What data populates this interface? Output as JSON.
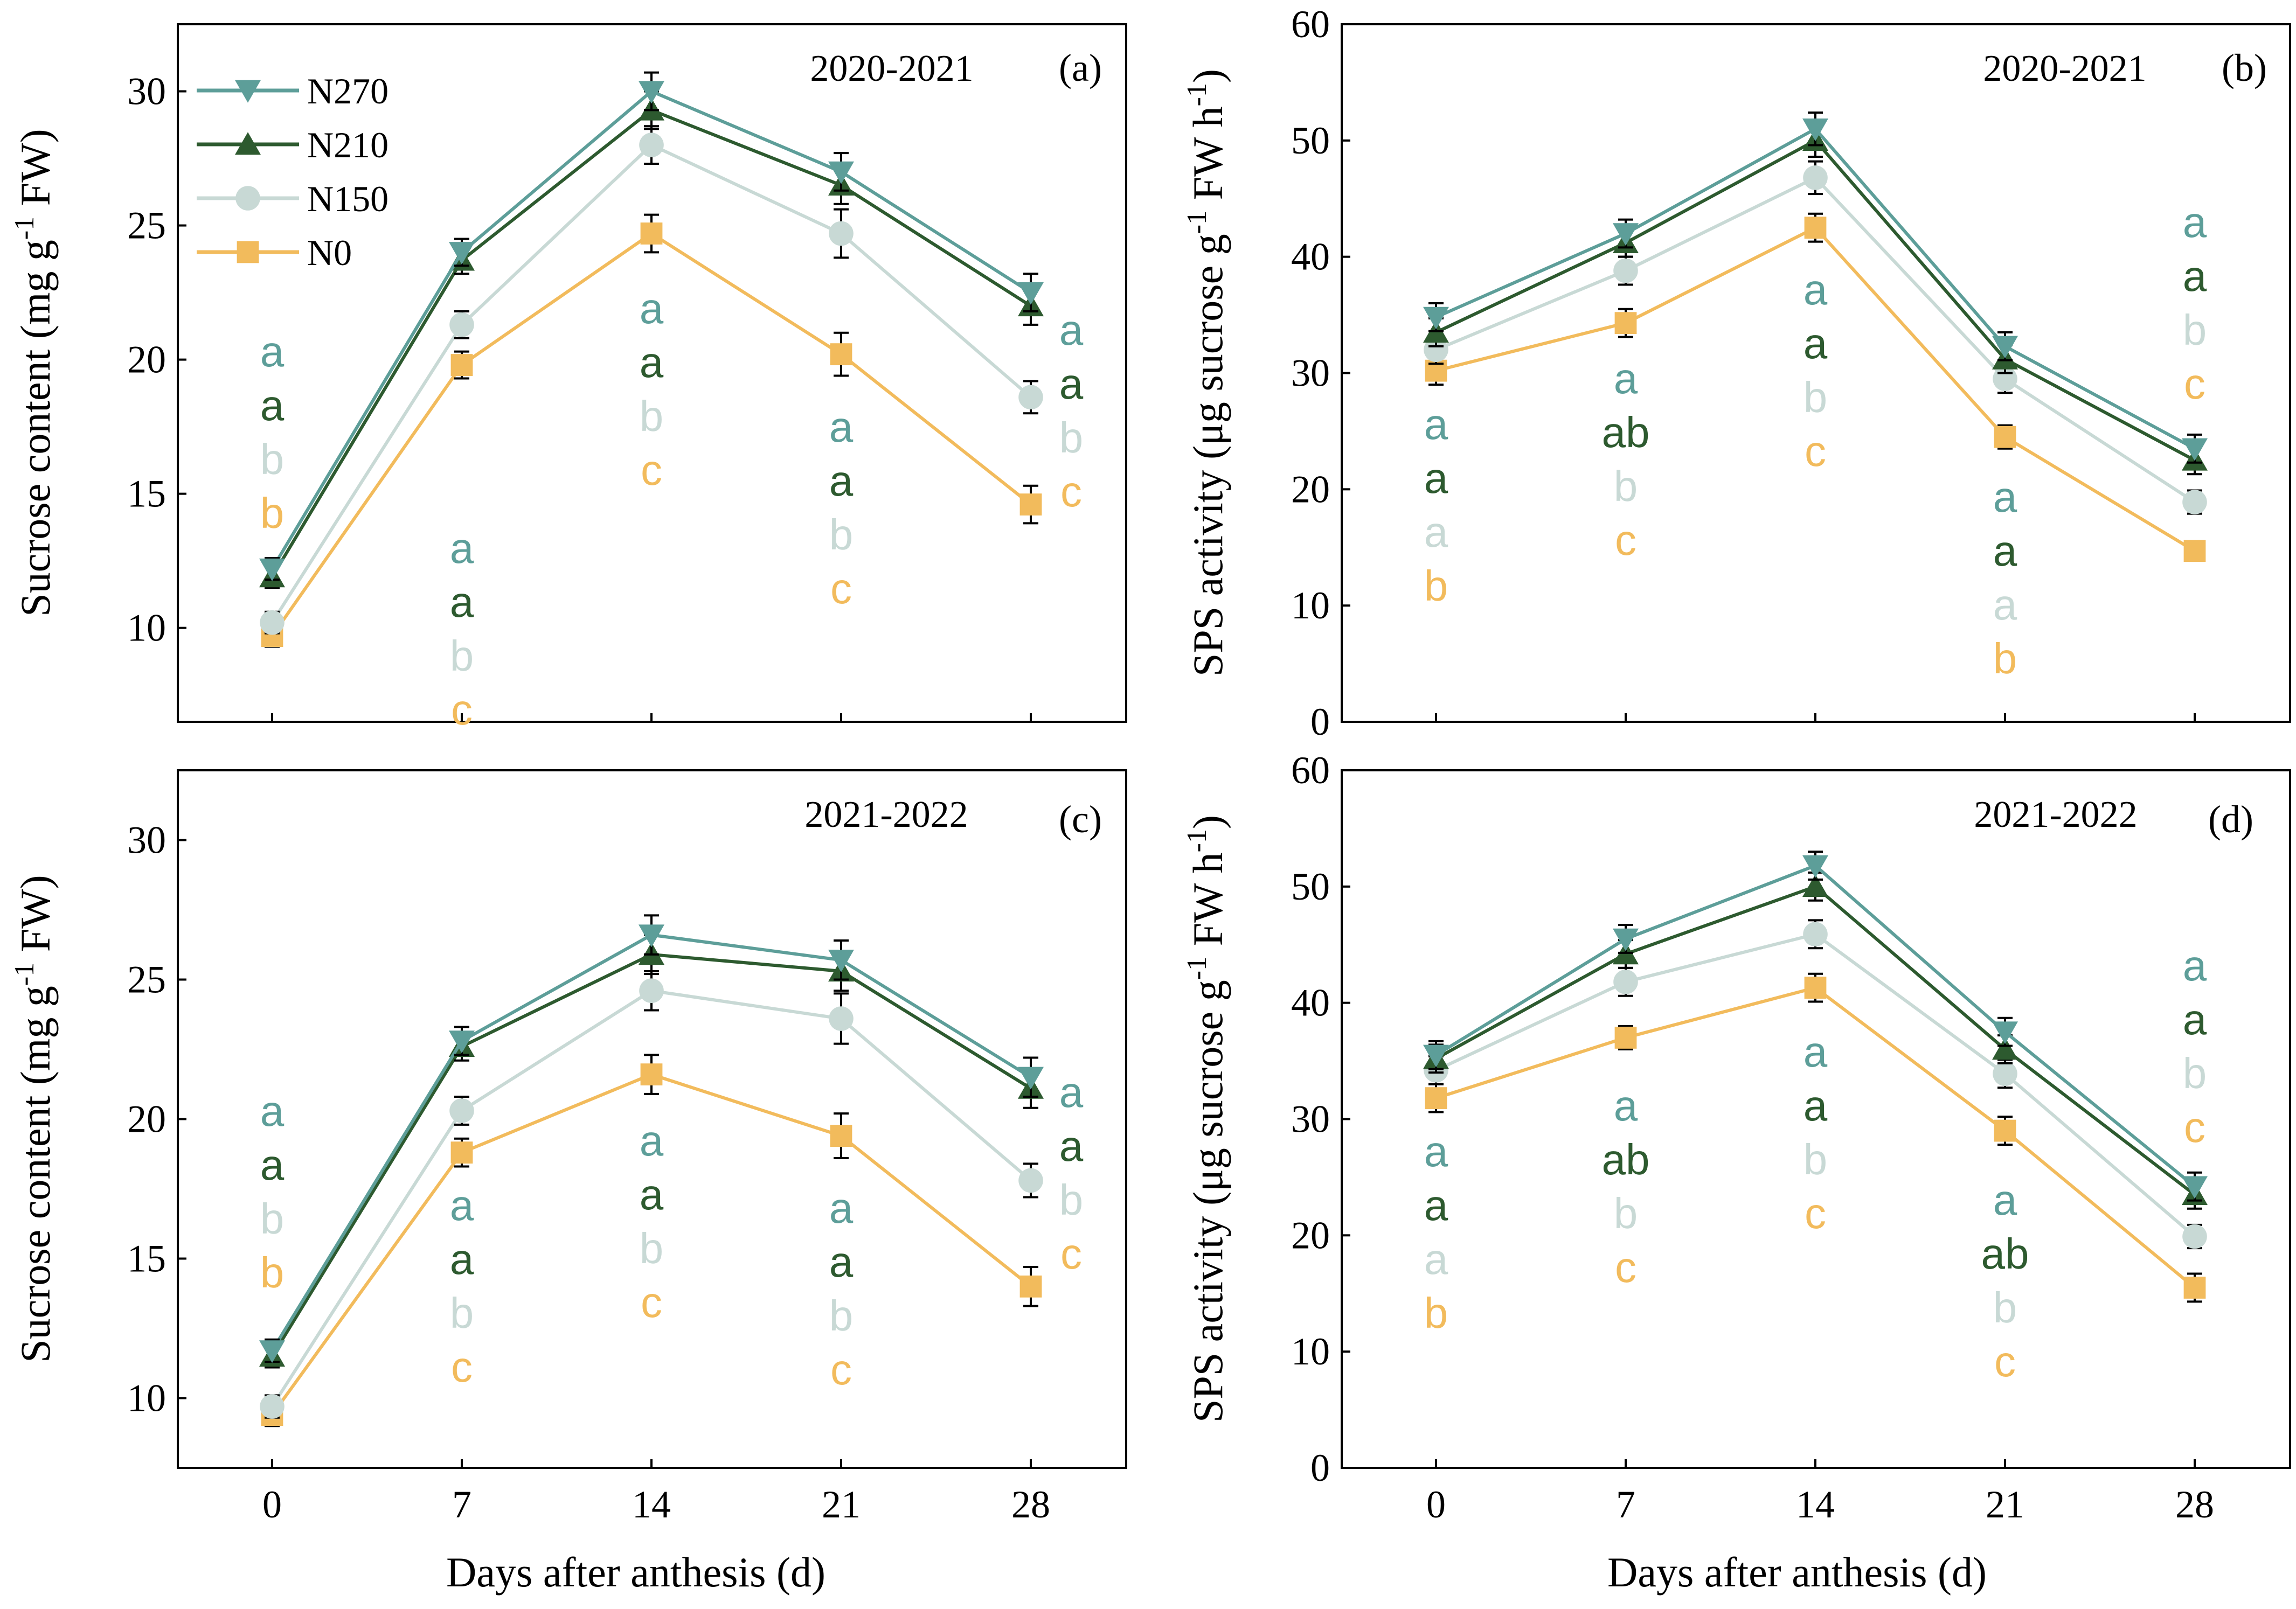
{
  "colors": {
    "N270": "#5d9e99",
    "N210": "#2d5a2f",
    "N150": "#c8d9d5",
    "N0": "#f2bb5c"
  },
  "legend": [
    {
      "name": "N270",
      "marker": "triangle-down"
    },
    {
      "name": "N210",
      "marker": "triangle-up"
    },
    {
      "name": "N150",
      "marker": "circle"
    },
    {
      "name": "N0",
      "marker": "square"
    }
  ],
  "x_axis_title": "Days after anthesis (d)",
  "chart_data": [
    {
      "type": "line",
      "panel": "(a)",
      "year": "2020-2021",
      "ylabel": "Sucrose content (mg g-1 FW)",
      "ylabel_parts": {
        "pre": "Sucrose content (mg g",
        "sup": "-1",
        "post": " FW)"
      },
      "x": [
        0,
        7,
        14,
        21,
        28
      ],
      "xticks": [
        "0",
        "7",
        "14",
        "21",
        "28"
      ],
      "ylim": [
        6.5,
        32.5
      ],
      "yticks": [
        10,
        15,
        20,
        25,
        30
      ],
      "series": [
        {
          "name": "N270",
          "values": [
            12.2,
            24.0,
            30.0,
            27.0,
            22.5
          ],
          "errors": [
            0.4,
            0.5,
            0.7,
            0.7,
            0.7
          ]
        },
        {
          "name": "N210",
          "values": [
            11.9,
            23.7,
            29.3,
            26.5,
            22.0
          ],
          "errors": [
            0.4,
            0.5,
            0.7,
            0.7,
            0.7
          ]
        },
        {
          "name": "N150",
          "values": [
            10.2,
            21.3,
            28.0,
            24.7,
            18.6
          ],
          "errors": [
            0.4,
            0.5,
            0.7,
            0.9,
            0.6
          ]
        },
        {
          "name": "N0",
          "values": [
            9.7,
            19.8,
            24.7,
            20.2,
            14.6
          ],
          "errors": [
            0.4,
            0.5,
            0.7,
            0.8,
            0.7
          ]
        }
      ],
      "letters": [
        {
          "x": 0,
          "letters": [
            "a",
            "a",
            "b",
            "b"
          ]
        },
        {
          "x": 7,
          "letters": [
            "a",
            "a",
            "b",
            "c"
          ]
        },
        {
          "x": 14,
          "letters": [
            "a",
            "a",
            "b",
            "c"
          ]
        },
        {
          "x": 21,
          "letters": [
            "a",
            "a",
            "b",
            "c"
          ]
        },
        {
          "x": 28,
          "letters": [
            "a",
            "a",
            "b",
            "c"
          ]
        }
      ]
    },
    {
      "type": "line",
      "panel": "(b)",
      "year": "2020-2021",
      "ylabel": "SPS activity (μg sucrose g-1 FW h-1)",
      "ylabel_parts": {
        "pre": "SPS activity (μg sucrose g",
        "sup": "-1",
        "mid": " FW h",
        "sup2": "-1",
        "post": ")"
      },
      "x": [
        0,
        7,
        14,
        21,
        28
      ],
      "xticks": [
        "0",
        "7",
        "14",
        "21",
        "28"
      ],
      "ylim": [
        0,
        60
      ],
      "yticks": [
        0,
        10,
        20,
        30,
        40,
        50,
        60
      ],
      "series": [
        {
          "name": "N270",
          "values": [
            34.8,
            42.0,
            51.0,
            32.3,
            23.5
          ],
          "errors": [
            1.2,
            1.2,
            1.4,
            1.2,
            1.2
          ]
        },
        {
          "name": "N210",
          "values": [
            33.5,
            41.2,
            50.0,
            31.2,
            22.5
          ],
          "errors": [
            1.2,
            1.2,
            1.4,
            1.2,
            1.2
          ]
        },
        {
          "name": "N150",
          "values": [
            32.0,
            38.8,
            46.8,
            29.5,
            18.9
          ],
          "errors": [
            1.2,
            1.2,
            1.4,
            1.2,
            1.0
          ]
        },
        {
          "name": "N0",
          "values": [
            30.2,
            34.3,
            42.5,
            24.5,
            14.7
          ],
          "errors": [
            1.2,
            1.2,
            1.2,
            1.0,
            0.6
          ]
        }
      ],
      "letters": [
        {
          "x": 0,
          "letters": [
            "a",
            "a",
            "a",
            "b"
          ]
        },
        {
          "x": 7,
          "letters": [
            "a",
            "ab",
            "b",
            "c"
          ]
        },
        {
          "x": 14,
          "letters": [
            "a",
            "a",
            "b",
            "c"
          ]
        },
        {
          "x": 21,
          "letters": [
            "a",
            "a",
            "a",
            "b"
          ]
        },
        {
          "x": 28,
          "letters": [
            "a",
            "a",
            "b",
            "c"
          ]
        }
      ]
    },
    {
      "type": "line",
      "panel": "(c)",
      "year": "2021-2022",
      "ylabel": "Sucrose content (mg g-1 FW)",
      "ylabel_parts": {
        "pre": "Sucrose content (mg g",
        "sup": "-1",
        "post": " FW)"
      },
      "x": [
        0,
        7,
        14,
        21,
        28
      ],
      "xticks": [
        "0",
        "7",
        "14",
        "21",
        "28"
      ],
      "ylim": [
        7.5,
        32.5
      ],
      "yticks": [
        10,
        15,
        20,
        25,
        30
      ],
      "series": [
        {
          "name": "N270",
          "values": [
            11.7,
            22.8,
            26.6,
            25.7,
            21.5
          ],
          "errors": [
            0.4,
            0.5,
            0.7,
            0.7,
            0.7
          ]
        },
        {
          "name": "N210",
          "values": [
            11.5,
            22.6,
            25.9,
            25.3,
            21.1
          ],
          "errors": [
            0.4,
            0.5,
            0.7,
            0.7,
            0.7
          ]
        },
        {
          "name": "N150",
          "values": [
            9.7,
            20.3,
            24.6,
            23.6,
            17.8
          ],
          "errors": [
            0.4,
            0.5,
            0.7,
            0.9,
            0.6
          ]
        },
        {
          "name": "N0",
          "values": [
            9.4,
            18.8,
            21.6,
            19.4,
            14.0
          ],
          "errors": [
            0.4,
            0.5,
            0.7,
            0.8,
            0.7
          ]
        }
      ],
      "letters": [
        {
          "x": 0,
          "letters": [
            "a",
            "a",
            "b",
            "b"
          ]
        },
        {
          "x": 7,
          "letters": [
            "a",
            "a",
            "b",
            "c"
          ]
        },
        {
          "x": 14,
          "letters": [
            "a",
            "a",
            "b",
            "c"
          ]
        },
        {
          "x": 21,
          "letters": [
            "a",
            "a",
            "b",
            "c"
          ]
        },
        {
          "x": 28,
          "letters": [
            "a",
            "a",
            "b",
            "c"
          ]
        }
      ]
    },
    {
      "type": "line",
      "panel": "(d)",
      "year": "2021-2022",
      "ylabel": "SPS activity (μg sucrose g-1 FW h-1)",
      "ylabel_parts": {
        "pre": "SPS activity (μg sucrose g",
        "sup": "-1",
        "mid": " FW h",
        "sup2": "-1",
        "post": ")"
      },
      "x": [
        0,
        7,
        14,
        21,
        28
      ],
      "xticks": [
        "0",
        "7",
        "14",
        "21",
        "28"
      ],
      "ylim": [
        0,
        60
      ],
      "yticks": [
        0,
        10,
        20,
        30,
        40,
        50,
        60
      ],
      "series": [
        {
          "name": "N270",
          "values": [
            35.5,
            45.5,
            51.8,
            37.5,
            24.2
          ],
          "errors": [
            1.2,
            1.2,
            1.2,
            1.2,
            1.2
          ]
        },
        {
          "name": "N210",
          "values": [
            35.2,
            44.2,
            50.0,
            36.0,
            23.5
          ],
          "errors": [
            1.2,
            1.2,
            1.2,
            1.2,
            1.2
          ]
        },
        {
          "name": "N150",
          "values": [
            34.2,
            41.8,
            45.9,
            33.9,
            19.9
          ],
          "errors": [
            1.2,
            1.2,
            1.2,
            1.2,
            1.0
          ]
        },
        {
          "name": "N0",
          "values": [
            31.8,
            37.0,
            41.3,
            29.0,
            15.5
          ],
          "errors": [
            1.2,
            1.0,
            1.2,
            1.2,
            1.2
          ]
        }
      ],
      "letters": [
        {
          "x": 0,
          "letters": [
            "a",
            "a",
            "a",
            "b"
          ]
        },
        {
          "x": 7,
          "letters": [
            "a",
            "ab",
            "b",
            "c"
          ]
        },
        {
          "x": 14,
          "letters": [
            "a",
            "a",
            "b",
            "c"
          ]
        },
        {
          "x": 21,
          "letters": [
            "a",
            "ab",
            "b",
            "c"
          ]
        },
        {
          "x": 28,
          "letters": [
            "a",
            "a",
            "b",
            "c"
          ]
        }
      ]
    }
  ]
}
